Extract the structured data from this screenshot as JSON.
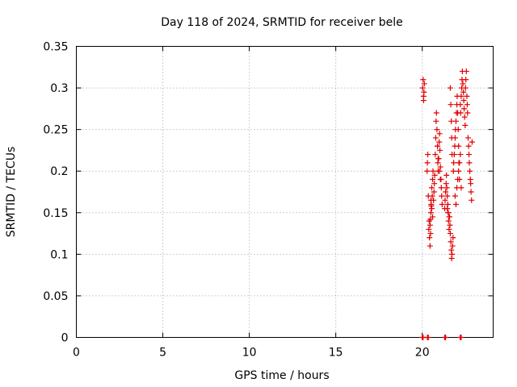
{
  "chart_data": {
    "type": "scatter",
    "title": "Day 118 of 2024, SRMTID for receiver bele",
    "xlabel": "GPS time / hours",
    "ylabel": "SRMTID / TECUs",
    "xlim": [
      0,
      24.1
    ],
    "ylim": [
      0,
      0.35
    ],
    "xticks": [
      0,
      5,
      10,
      15,
      20
    ],
    "xtick_labels": [
      "0",
      "5",
      "10",
      "15",
      "20"
    ],
    "yticks": [
      0,
      0.05,
      0.1,
      0.15,
      0.2,
      0.25,
      0.3,
      0.35
    ],
    "ytick_labels": [
      "0",
      "0.05",
      "0.1",
      "0.15",
      "0.2",
      "0.25",
      "0.3",
      "0.35"
    ],
    "grid": true,
    "legend": "none",
    "marker": "+",
    "color": "#e00000",
    "series": [
      {
        "x": [
          20.02,
          20.05,
          20.08,
          20.1,
          20.12,
          20.08,
          20.28,
          20.3,
          20.32,
          20.35,
          20.38,
          20.4,
          20.42,
          20.45,
          20.48,
          20.5,
          20.52,
          20.55,
          20.58,
          20.6,
          20.62,
          20.65,
          20.68,
          20.7,
          20.72,
          20.75,
          20.78,
          20.8,
          20.82,
          20.85,
          20.88,
          20.9,
          20.92,
          20.95,
          20.98,
          21.0,
          21.02,
          21.05,
          21.08,
          21.1,
          21.12,
          21.15,
          20.5,
          20.55,
          20.6,
          20.45,
          20.48,
          20.52,
          21.3,
          21.32,
          21.35,
          21.38,
          21.4,
          21.42,
          21.45,
          21.48,
          21.5,
          21.52,
          21.55,
          21.58,
          21.6,
          21.62,
          21.65,
          21.68,
          21.7,
          21.72,
          21.75,
          21.78,
          21.8,
          21.82,
          21.85,
          21.88,
          21.9,
          21.92,
          21.95,
          21.98,
          22.0,
          22.02,
          22.05,
          22.08,
          22.1,
          22.12,
          22.15,
          21.62,
          21.65,
          21.68,
          21.7,
          21.72,
          22.2,
          22.22,
          22.25,
          22.28,
          22.3,
          22.32,
          22.35,
          22.38,
          22.4,
          22.42,
          22.45,
          22.48,
          22.5,
          22.52,
          22.55,
          22.58,
          22.6,
          22.62,
          22.65,
          22.68,
          22.7,
          22.72,
          22.75,
          22.78,
          22.8,
          22.82,
          22.85,
          22.88,
          22.1,
          22.15,
          22.2,
          22.05,
          22.25,
          21.5,
          21.55,
          21.45,
          21.9,
          21.95,
          22.0,
          20.88,
          20.92,
          21.0,
          21.05,
          20.0,
          20.05,
          20.3,
          20.35,
          21.3,
          21.35,
          22.2,
          22.25
        ],
        "y": [
          0.3,
          0.31,
          0.29,
          0.295,
          0.305,
          0.285,
          0.2,
          0.21,
          0.22,
          0.17,
          0.13,
          0.14,
          0.12,
          0.11,
          0.125,
          0.15,
          0.16,
          0.18,
          0.17,
          0.19,
          0.2,
          0.165,
          0.175,
          0.185,
          0.195,
          0.22,
          0.24,
          0.26,
          0.27,
          0.25,
          0.23,
          0.21,
          0.2,
          0.215,
          0.235,
          0.245,
          0.225,
          0.205,
          0.19,
          0.18,
          0.17,
          0.16,
          0.165,
          0.155,
          0.145,
          0.135,
          0.142,
          0.158,
          0.155,
          0.165,
          0.175,
          0.185,
          0.195,
          0.18,
          0.17,
          0.16,
          0.15,
          0.14,
          0.13,
          0.145,
          0.135,
          0.125,
          0.115,
          0.105,
          0.095,
          0.1,
          0.11,
          0.12,
          0.2,
          0.21,
          0.22,
          0.23,
          0.24,
          0.25,
          0.26,
          0.27,
          0.28,
          0.29,
          0.27,
          0.25,
          0.23,
          0.21,
          0.19,
          0.3,
          0.28,
          0.26,
          0.24,
          0.22,
          0.28,
          0.27,
          0.29,
          0.3,
          0.31,
          0.32,
          0.305,
          0.295,
          0.285,
          0.275,
          0.265,
          0.255,
          0.3,
          0.31,
          0.32,
          0.29,
          0.28,
          0.27,
          0.24,
          0.23,
          0.22,
          0.21,
          0.2,
          0.19,
          0.185,
          0.175,
          0.165,
          0.235,
          0.2,
          0.21,
          0.22,
          0.19,
          0.18,
          0.15,
          0.145,
          0.155,
          0.17,
          0.16,
          0.18,
          0.23,
          0.215,
          0.2,
          0.19,
          0.0,
          0.0,
          0.0,
          0.0,
          0.0,
          0.0,
          0.0,
          0.0
        ]
      }
    ]
  }
}
